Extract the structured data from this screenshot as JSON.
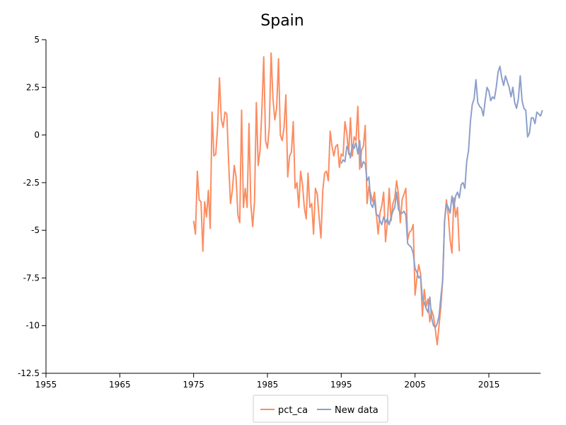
{
  "chart_data": {
    "type": "line",
    "title": "Spain",
    "xlabel": "",
    "ylabel": "",
    "xlim": [
      1955,
      2022
    ],
    "ylim": [
      -12.5,
      5
    ],
    "x_ticks": [
      1955,
      1965,
      1975,
      1985,
      1995,
      2005,
      2015
    ],
    "x_tick_labels": [
      "1955",
      "1965",
      "1975",
      "1985",
      "1995",
      "2005",
      "2015"
    ],
    "y_ticks": [
      5,
      2.5,
      0,
      -2.5,
      -5,
      -7.5,
      -10,
      -12.5
    ],
    "y_tick_labels": [
      "5",
      "2.5",
      "0",
      "-2.5",
      "-5",
      "-7.5",
      "-10",
      "-12.5"
    ],
    "grid": false,
    "legend_position": "bottom-center",
    "series": [
      {
        "name": "pct_ca",
        "color": "#fc8d62",
        "points": [
          [
            1975.0,
            -4.5
          ],
          [
            1975.25,
            -5.2
          ],
          [
            1975.5,
            -1.9
          ],
          [
            1975.75,
            -3.4
          ],
          [
            1976.0,
            -3.5
          ],
          [
            1976.25,
            -6.1
          ],
          [
            1976.5,
            -3.5
          ],
          [
            1976.75,
            -4.3
          ],
          [
            1977.0,
            -2.9
          ],
          [
            1977.25,
            -4.9
          ],
          [
            1977.5,
            1.2
          ],
          [
            1977.75,
            -1.1
          ],
          [
            1978.0,
            -1.0
          ],
          [
            1978.25,
            0.4
          ],
          [
            1978.5,
            3.0
          ],
          [
            1978.75,
            0.8
          ],
          [
            1979.0,
            0.4
          ],
          [
            1979.25,
            1.2
          ],
          [
            1979.5,
            1.1
          ],
          [
            1979.75,
            -1.5
          ],
          [
            1980.0,
            -3.6
          ],
          [
            1980.25,
            -2.9
          ],
          [
            1980.5,
            -1.6
          ],
          [
            1980.75,
            -2.2
          ],
          [
            1981.0,
            -4.2
          ],
          [
            1981.25,
            -4.6
          ],
          [
            1981.5,
            1.3
          ],
          [
            1981.75,
            -3.8
          ],
          [
            1982.0,
            -2.8
          ],
          [
            1982.25,
            -3.8
          ],
          [
            1982.5,
            0.6
          ],
          [
            1982.75,
            -3.6
          ],
          [
            1983.0,
            -4.8
          ],
          [
            1983.25,
            -3.5
          ],
          [
            1983.5,
            1.7
          ],
          [
            1983.75,
            -1.6
          ],
          [
            1984.0,
            -0.8
          ],
          [
            1984.25,
            1.3
          ],
          [
            1984.5,
            4.1
          ],
          [
            1984.75,
            -0.3
          ],
          [
            1985.0,
            -0.7
          ],
          [
            1985.25,
            0.4
          ],
          [
            1985.5,
            4.3
          ],
          [
            1985.75,
            1.9
          ],
          [
            1986.0,
            0.8
          ],
          [
            1986.25,
            1.4
          ],
          [
            1986.5,
            4.0
          ],
          [
            1986.75,
            0.0
          ],
          [
            1987.0,
            -0.3
          ],
          [
            1987.25,
            0.4
          ],
          [
            1987.5,
            2.1
          ],
          [
            1987.75,
            -2.2
          ],
          [
            1988.0,
            -1.1
          ],
          [
            1988.25,
            -0.9
          ],
          [
            1988.5,
            0.7
          ],
          [
            1988.75,
            -2.8
          ],
          [
            1989.0,
            -2.5
          ],
          [
            1989.25,
            -3.8
          ],
          [
            1989.5,
            -1.9
          ],
          [
            1989.75,
            -2.6
          ],
          [
            1990.0,
            -3.8
          ],
          [
            1990.25,
            -4.4
          ],
          [
            1990.5,
            -2.0
          ],
          [
            1990.75,
            -3.8
          ],
          [
            1991.0,
            -3.6
          ],
          [
            1991.25,
            -5.2
          ],
          [
            1991.5,
            -2.8
          ],
          [
            1991.75,
            -3.1
          ],
          [
            1992.0,
            -4.3
          ],
          [
            1992.25,
            -5.4
          ],
          [
            1992.5,
            -2.9
          ],
          [
            1992.75,
            -2.0
          ],
          [
            1993.0,
            -1.9
          ],
          [
            1993.25,
            -2.4
          ],
          [
            1993.5,
            0.2
          ],
          [
            1993.75,
            -0.6
          ],
          [
            1994.0,
            -1.1
          ],
          [
            1994.25,
            -0.6
          ],
          [
            1994.5,
            -0.5
          ],
          [
            1994.75,
            -1.7
          ],
          [
            1995.0,
            -1.0
          ],
          [
            1995.25,
            -1.1
          ],
          [
            1995.5,
            0.7
          ],
          [
            1995.75,
            0.1
          ],
          [
            1996.0,
            -1.0
          ],
          [
            1996.25,
            0.9
          ],
          [
            1996.5,
            -1.1
          ],
          [
            1996.75,
            -0.1
          ],
          [
            1997.0,
            -0.3
          ],
          [
            1997.25,
            1.5
          ],
          [
            1997.5,
            -1.8
          ],
          [
            1997.75,
            -0.8
          ],
          [
            1998.0,
            -0.6
          ],
          [
            1998.25,
            0.5
          ],
          [
            1998.5,
            -3.6
          ],
          [
            1998.75,
            -2.7
          ],
          [
            1999.0,
            -3.1
          ],
          [
            1999.25,
            -3.5
          ],
          [
            1999.5,
            -3.0
          ],
          [
            1999.75,
            -4.1
          ],
          [
            2000.0,
            -5.2
          ],
          [
            2000.25,
            -4.1
          ],
          [
            2000.5,
            -3.7
          ],
          [
            2000.75,
            -3.0
          ],
          [
            2001.0,
            -5.6
          ],
          [
            2001.25,
            -4.6
          ],
          [
            2001.5,
            -2.8
          ],
          [
            2001.75,
            -4.5
          ],
          [
            2002.0,
            -3.6
          ],
          [
            2002.25,
            -3.3
          ],
          [
            2002.5,
            -2.4
          ],
          [
            2002.75,
            -3.1
          ],
          [
            2003.0,
            -4.6
          ],
          [
            2003.25,
            -3.4
          ],
          [
            2003.5,
            -3.1
          ],
          [
            2003.75,
            -2.8
          ],
          [
            2004.0,
            -5.5
          ],
          [
            2004.25,
            -5.1
          ],
          [
            2004.5,
            -5.0
          ],
          [
            2004.75,
            -4.7
          ],
          [
            2005.0,
            -8.4
          ],
          [
            2005.25,
            -7.5
          ],
          [
            2005.5,
            -6.8
          ],
          [
            2005.75,
            -7.3
          ],
          [
            2006.0,
            -9.5
          ],
          [
            2006.25,
            -8.1
          ],
          [
            2006.5,
            -9.0
          ],
          [
            2006.75,
            -8.6
          ],
          [
            2007.0,
            -9.8
          ],
          [
            2007.25,
            -9.2
          ],
          [
            2007.5,
            -9.5
          ],
          [
            2007.75,
            -10.2
          ],
          [
            2008.0,
            -11.0
          ],
          [
            2008.25,
            -10.0
          ],
          [
            2008.5,
            -9.0
          ],
          [
            2008.75,
            -7.5
          ],
          [
            2009.0,
            -4.5
          ],
          [
            2009.25,
            -3.4
          ],
          [
            2009.5,
            -4.2
          ],
          [
            2009.75,
            -5.5
          ],
          [
            2010.0,
            -6.2
          ],
          [
            2010.25,
            -3.3
          ],
          [
            2010.5,
            -4.3
          ],
          [
            2010.75,
            -3.8
          ],
          [
            2011.0,
            -6.1
          ]
        ]
      },
      {
        "name": "New data",
        "color": "#8da0cb",
        "points": [
          [
            1995.0,
            -1.5
          ],
          [
            1995.25,
            -1.3
          ],
          [
            1995.5,
            -1.4
          ],
          [
            1995.75,
            -0.6
          ],
          [
            1996.0,
            -0.8
          ],
          [
            1996.25,
            -1.2
          ],
          [
            1996.5,
            -0.5
          ],
          [
            1996.75,
            -0.7
          ],
          [
            1997.0,
            -0.4
          ],
          [
            1997.25,
            -1.0
          ],
          [
            1997.5,
            -0.3
          ],
          [
            1997.75,
            -1.7
          ],
          [
            1998.0,
            -1.4
          ],
          [
            1998.25,
            -1.5
          ],
          [
            1998.5,
            -2.4
          ],
          [
            1998.75,
            -2.2
          ],
          [
            1999.0,
            -3.6
          ],
          [
            1999.25,
            -3.8
          ],
          [
            1999.5,
            -3.4
          ],
          [
            1999.75,
            -4.2
          ],
          [
            2000.0,
            -4.2
          ],
          [
            2000.25,
            -4.5
          ],
          [
            2000.5,
            -4.7
          ],
          [
            2000.75,
            -4.3
          ],
          [
            2001.0,
            -4.6
          ],
          [
            2001.25,
            -4.4
          ],
          [
            2001.5,
            -4.7
          ],
          [
            2001.75,
            -4.3
          ],
          [
            2002.0,
            -4.0
          ],
          [
            2002.25,
            -3.8
          ],
          [
            2002.5,
            -3.0
          ],
          [
            2002.75,
            -3.9
          ],
          [
            2003.0,
            -4.1
          ],
          [
            2003.25,
            -4.1
          ],
          [
            2003.5,
            -4.0
          ],
          [
            2003.75,
            -4.2
          ],
          [
            2004.0,
            -5.7
          ],
          [
            2004.25,
            -5.8
          ],
          [
            2004.5,
            -5.9
          ],
          [
            2004.75,
            -6.2
          ],
          [
            2005.0,
            -7.0
          ],
          [
            2005.25,
            -7.2
          ],
          [
            2005.5,
            -7.5
          ],
          [
            2005.75,
            -7.4
          ],
          [
            2006.0,
            -8.6
          ],
          [
            2006.25,
            -8.8
          ],
          [
            2006.5,
            -9.1
          ],
          [
            2006.75,
            -9.3
          ],
          [
            2007.0,
            -8.5
          ],
          [
            2007.25,
            -9.6
          ],
          [
            2007.5,
            -10.0
          ],
          [
            2007.75,
            -10.1
          ],
          [
            2008.0,
            -9.9
          ],
          [
            2008.25,
            -9.5
          ],
          [
            2008.5,
            -8.5
          ],
          [
            2008.75,
            -7.6
          ],
          [
            2009.0,
            -4.5
          ],
          [
            2009.25,
            -3.6
          ],
          [
            2009.5,
            -3.8
          ],
          [
            2009.75,
            -4.1
          ],
          [
            2010.0,
            -3.2
          ],
          [
            2010.25,
            -3.8
          ],
          [
            2010.5,
            -3.2
          ],
          [
            2010.75,
            -3.0
          ],
          [
            2011.0,
            -3.3
          ],
          [
            2011.25,
            -2.6
          ],
          [
            2011.5,
            -2.5
          ],
          [
            2011.75,
            -2.8
          ],
          [
            2012.0,
            -1.4
          ],
          [
            2012.25,
            -0.8
          ],
          [
            2012.5,
            0.7
          ],
          [
            2012.75,
            1.6
          ],
          [
            2013.0,
            1.9
          ],
          [
            2013.25,
            2.9
          ],
          [
            2013.5,
            1.7
          ],
          [
            2013.75,
            1.5
          ],
          [
            2014.0,
            1.4
          ],
          [
            2014.25,
            1.0
          ],
          [
            2014.5,
            1.8
          ],
          [
            2014.75,
            2.5
          ],
          [
            2015.0,
            2.3
          ],
          [
            2015.25,
            1.8
          ],
          [
            2015.5,
            2.0
          ],
          [
            2015.75,
            1.9
          ],
          [
            2016.0,
            2.5
          ],
          [
            2016.25,
            3.3
          ],
          [
            2016.5,
            3.6
          ],
          [
            2016.75,
            3.0
          ],
          [
            2017.0,
            2.6
          ],
          [
            2017.25,
            3.1
          ],
          [
            2017.5,
            2.8
          ],
          [
            2017.75,
            2.5
          ],
          [
            2018.0,
            2.0
          ],
          [
            2018.25,
            2.5
          ],
          [
            2018.5,
            1.7
          ],
          [
            2018.75,
            1.4
          ],
          [
            2019.0,
            1.9
          ],
          [
            2019.25,
            3.1
          ],
          [
            2019.5,
            1.8
          ],
          [
            2019.75,
            1.4
          ],
          [
            2020.0,
            1.3
          ],
          [
            2020.25,
            -0.1
          ],
          [
            2020.5,
            0.1
          ],
          [
            2020.75,
            0.9
          ],
          [
            2021.0,
            0.9
          ],
          [
            2021.25,
            0.6
          ],
          [
            2021.5,
            1.2
          ],
          [
            2021.75,
            1.1
          ],
          [
            2022.0,
            1.0
          ],
          [
            2022.25,
            1.3
          ]
        ]
      }
    ]
  }
}
